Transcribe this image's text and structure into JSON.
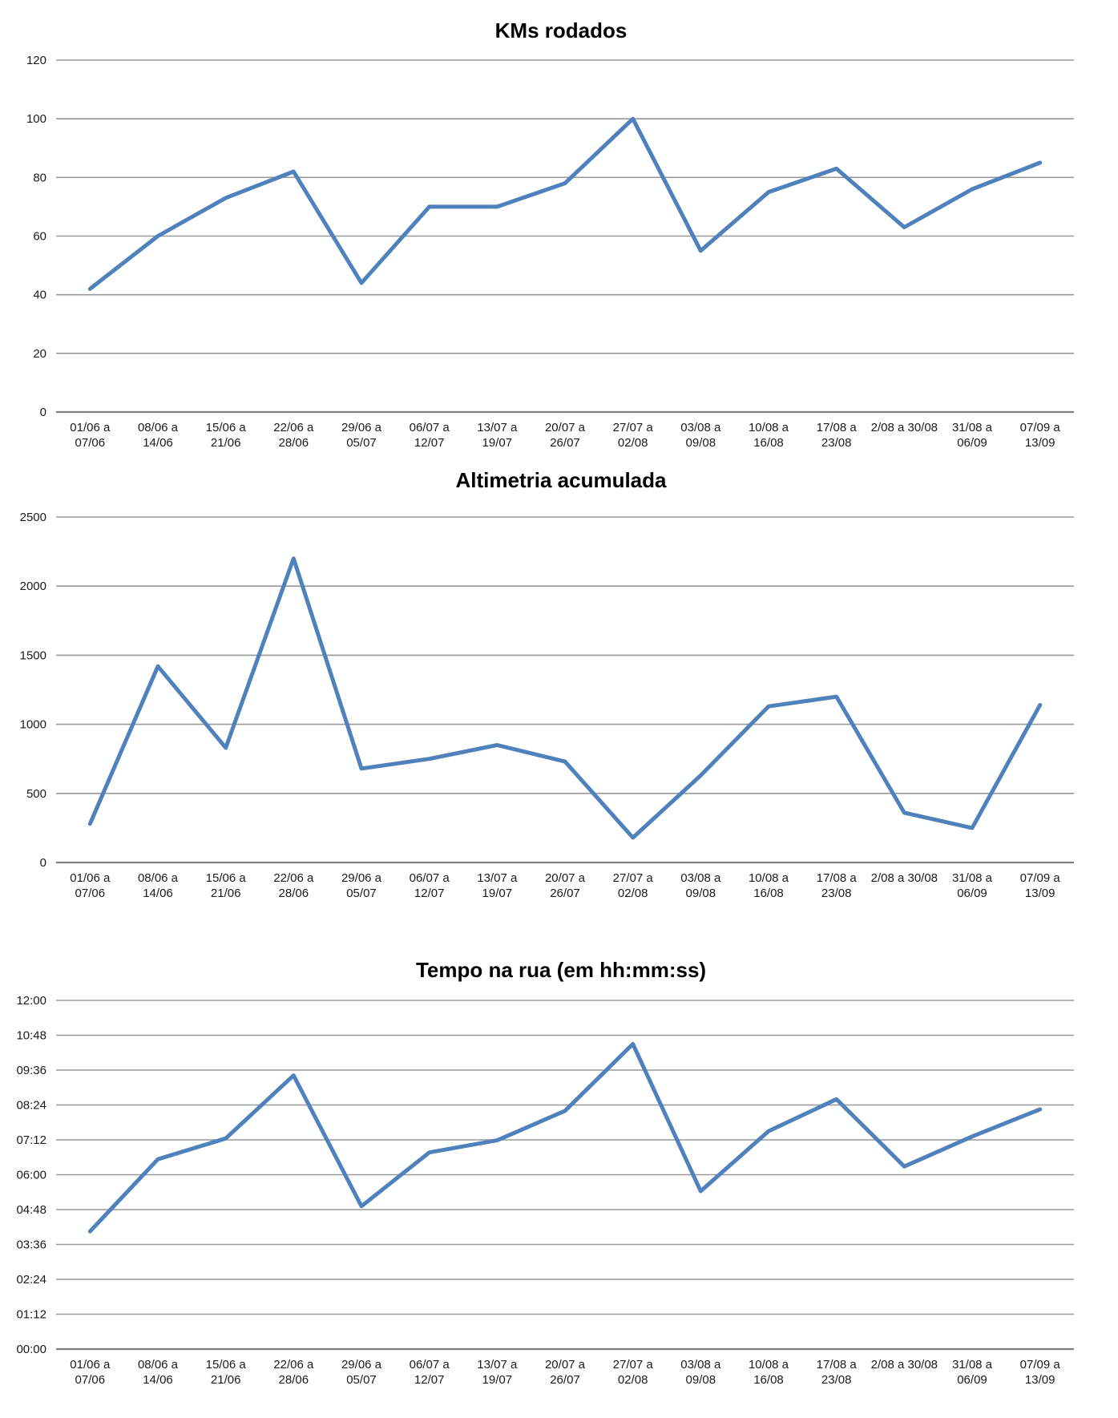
{
  "page": {
    "background": "#ffffff"
  },
  "colors": {
    "series_line": "#4F81BD",
    "gridline": "#999999",
    "axis_line": "#808080",
    "title_text": "#000000",
    "label_text": "#1a1a1a"
  },
  "categories": [
    {
      "line1": "01/06 a",
      "line2": "07/06"
    },
    {
      "line1": "08/06 a",
      "line2": "14/06"
    },
    {
      "line1": "15/06 a",
      "line2": "21/06"
    },
    {
      "line1": "22/06 a",
      "line2": "28/06"
    },
    {
      "line1": "29/06 a",
      "line2": "05/07"
    },
    {
      "line1": "06/07 a",
      "line2": "12/07"
    },
    {
      "line1": "13/07 a",
      "line2": "19/07"
    },
    {
      "line1": "20/07 a",
      "line2": "26/07"
    },
    {
      "line1": "27/07 a",
      "line2": "02/08"
    },
    {
      "line1": "03/08 a",
      "line2": "09/08"
    },
    {
      "line1": "10/08 a",
      "line2": "16/08"
    },
    {
      "line1": "17/08 a",
      "line2": "23/08"
    },
    {
      "line1": "2/08 a 30/08",
      "line2": ""
    },
    {
      "line1": "31/08 a",
      "line2": "06/09"
    },
    {
      "line1": "07/09 a",
      "line2": "13/09"
    }
  ],
  "chart_data": [
    {
      "id": "kms",
      "type": "line",
      "title": "KMs rodados",
      "xlabel": "",
      "ylabel": "",
      "ylim": [
        0,
        120
      ],
      "grid": true,
      "legend": "none",
      "yticks": [
        {
          "value": 0,
          "label": "0"
        },
        {
          "value": 20,
          "label": "20"
        },
        {
          "value": 40,
          "label": "40"
        },
        {
          "value": 60,
          "label": "60"
        },
        {
          "value": 80,
          "label": "80"
        },
        {
          "value": 100,
          "label": "100"
        },
        {
          "value": 120,
          "label": "120"
        }
      ],
      "values": [
        42,
        60,
        73,
        82,
        44,
        70,
        70,
        78,
        100,
        55,
        75,
        83,
        63,
        76,
        85
      ]
    },
    {
      "id": "altimetria",
      "type": "line",
      "title": "Altimetria acumulada",
      "xlabel": "",
      "ylabel": "",
      "ylim": [
        0,
        2500
      ],
      "grid": true,
      "legend": "none",
      "yticks": [
        {
          "value": 0,
          "label": "0"
        },
        {
          "value": 500,
          "label": "500"
        },
        {
          "value": 1000,
          "label": "1000"
        },
        {
          "value": 1500,
          "label": "1500"
        },
        {
          "value": 2000,
          "label": "2000"
        },
        {
          "value": 2500,
          "label": "2500"
        }
      ],
      "values": [
        280,
        1420,
        830,
        2200,
        680,
        750,
        850,
        730,
        180,
        630,
        1130,
        1200,
        360,
        250,
        1140
      ]
    },
    {
      "id": "tempo",
      "type": "line",
      "title": "Tempo na rua (em hh:mm:ss)",
      "xlabel": "",
      "ylabel": "",
      "unit": "minutes",
      "ylim": [
        0,
        720
      ],
      "grid": true,
      "legend": "none",
      "yticks": [
        {
          "value": 0,
          "label": "00:00"
        },
        {
          "value": 72,
          "label": "01:12"
        },
        {
          "value": 144,
          "label": "02:24"
        },
        {
          "value": 216,
          "label": "03:36"
        },
        {
          "value": 288,
          "label": "04:48"
        },
        {
          "value": 360,
          "label": "06:00"
        },
        {
          "value": 432,
          "label": "07:12"
        },
        {
          "value": 504,
          "label": "08:24"
        },
        {
          "value": 576,
          "label": "09:36"
        },
        {
          "value": 648,
          "label": "10:48"
        },
        {
          "value": 720,
          "label": "12:00"
        }
      ],
      "values": [
        243,
        392,
        435,
        565,
        295,
        406,
        431,
        492,
        630,
        326,
        450,
        516,
        377,
        439,
        495
      ],
      "values_hhmm": [
        "04:03",
        "06:32",
        "07:15",
        "09:25",
        "04:55",
        "06:46",
        "07:11",
        "08:12",
        "10:30",
        "05:26",
        "07:30",
        "08:36",
        "06:17",
        "07:19",
        "08:15"
      ]
    }
  ]
}
